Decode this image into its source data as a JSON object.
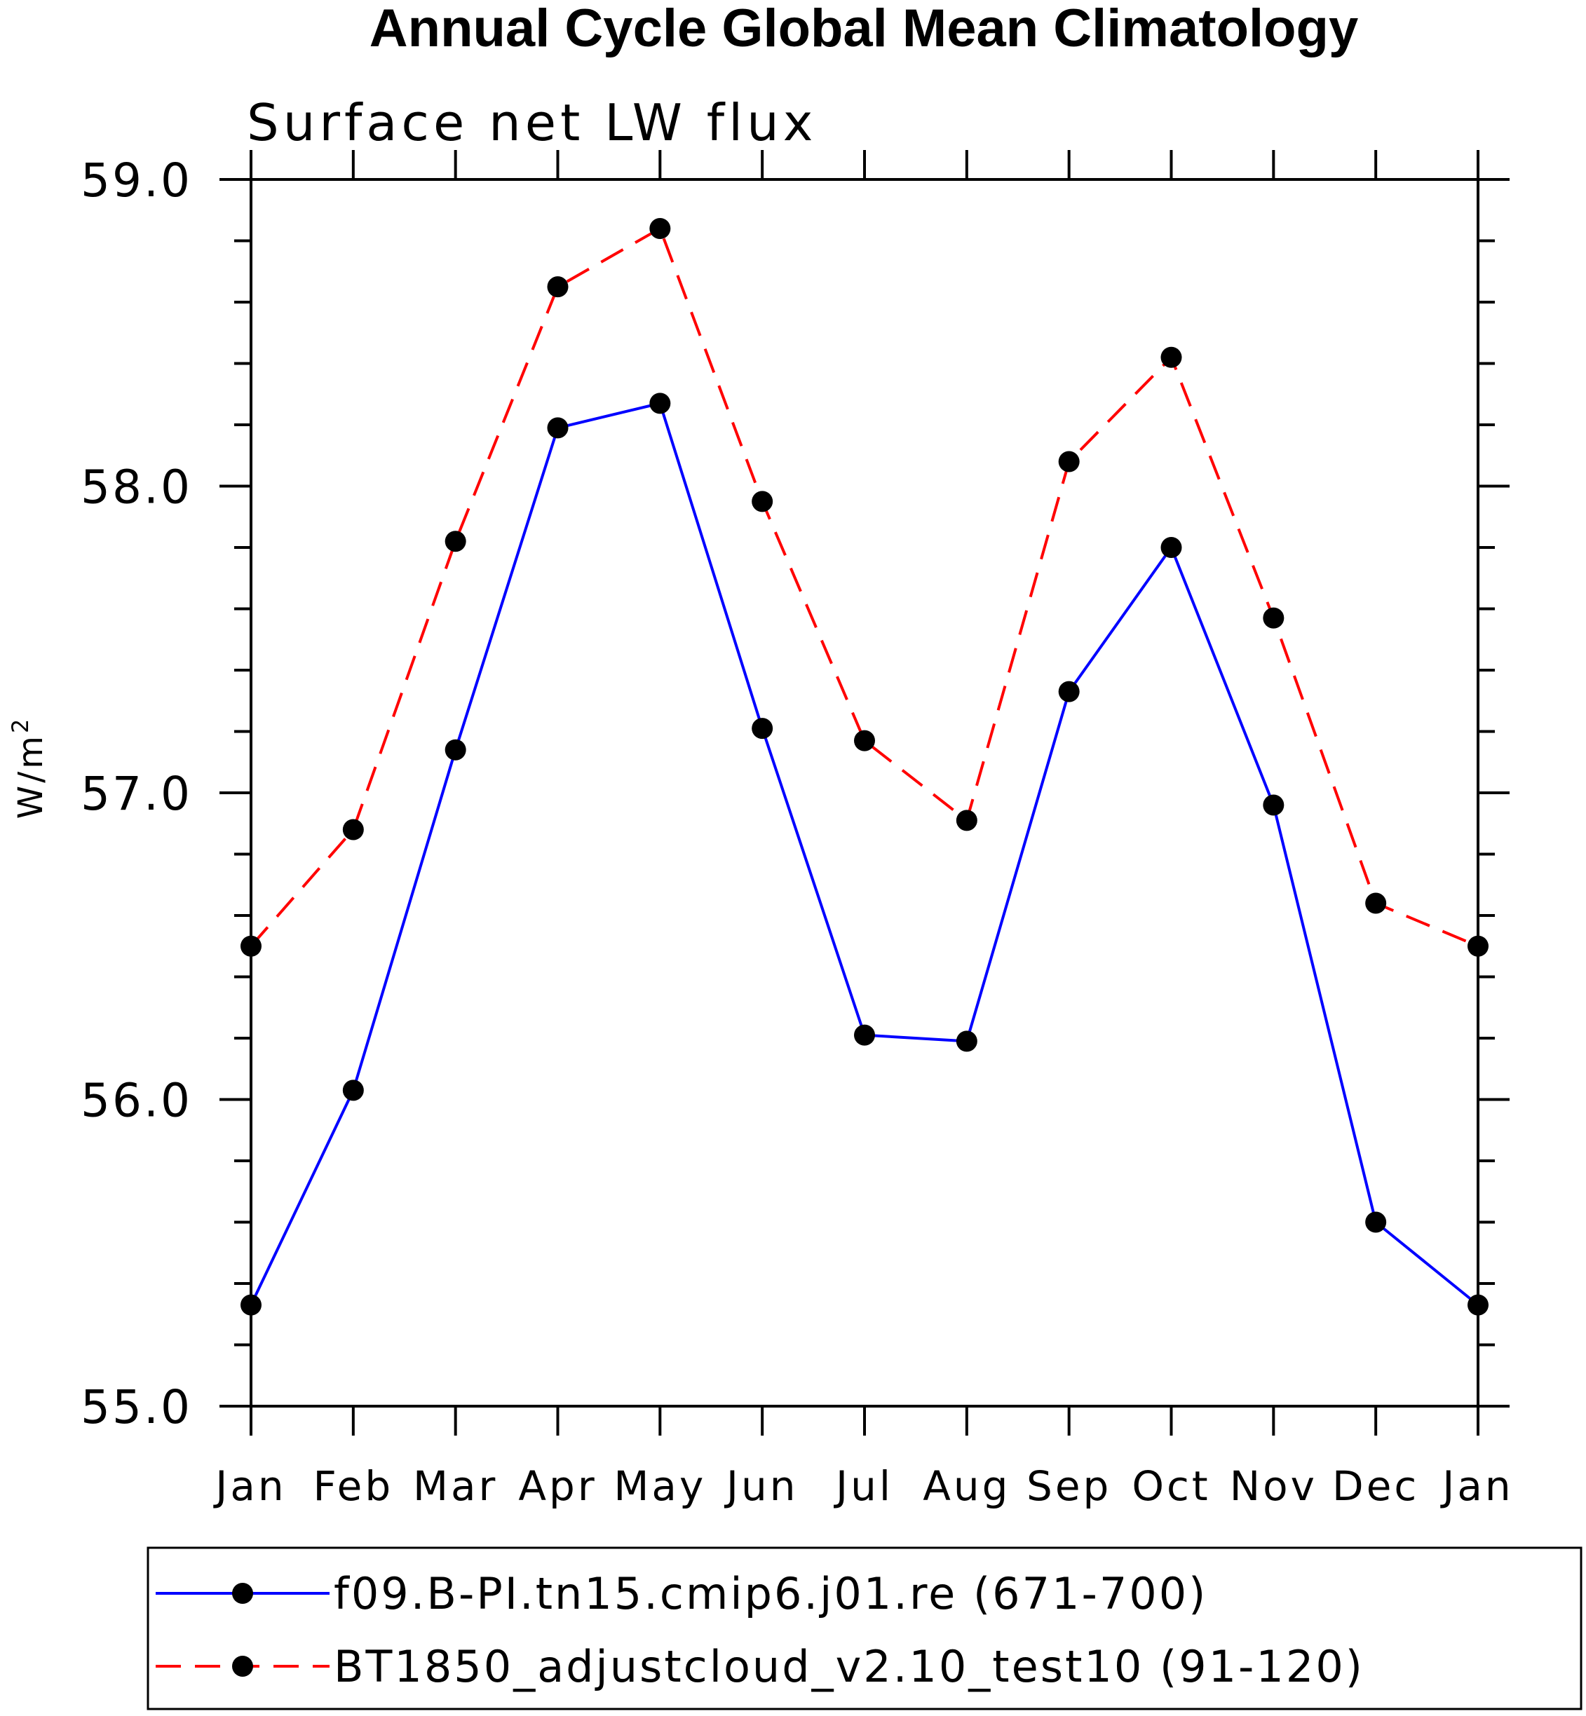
{
  "chart_data": {
    "type": "line",
    "title": "Annual Cycle Global Mean Climatology",
    "subtitle": "Surface net LW flux",
    "ylabel_main": "W/m",
    "ylabel_sup": "2",
    "categories": [
      "Jan",
      "Feb",
      "Mar",
      "Apr",
      "May",
      "Jun",
      "Jul",
      "Aug",
      "Sep",
      "Oct",
      "Nov",
      "Dec",
      "Jan"
    ],
    "ylim": [
      55.0,
      59.0
    ],
    "yticks": [
      "55.0",
      "56.0",
      "57.0",
      "58.0",
      "59.0"
    ],
    "ytick_values": [
      55.0,
      56.0,
      57.0,
      58.0,
      59.0
    ],
    "series": [
      {
        "name": "f09.B-PI.tn15.cmip6.j01.re (671-700)",
        "color": "#0000ff",
        "dash": "solid",
        "values": [
          55.33,
          56.03,
          57.14,
          58.19,
          58.27,
          57.21,
          56.21,
          56.19,
          57.33,
          57.8,
          56.96,
          55.6,
          55.33
        ]
      },
      {
        "name": "BT1850_adjustcloud_v2.10_test10 (91-120)",
        "color": "#ff0000",
        "dash": "dashed",
        "values": [
          56.5,
          56.88,
          57.82,
          58.65,
          58.84,
          57.95,
          57.17,
          56.91,
          58.08,
          58.42,
          57.57,
          56.64,
          56.5
        ]
      }
    ],
    "grid": false,
    "legend_position": "bottom"
  }
}
